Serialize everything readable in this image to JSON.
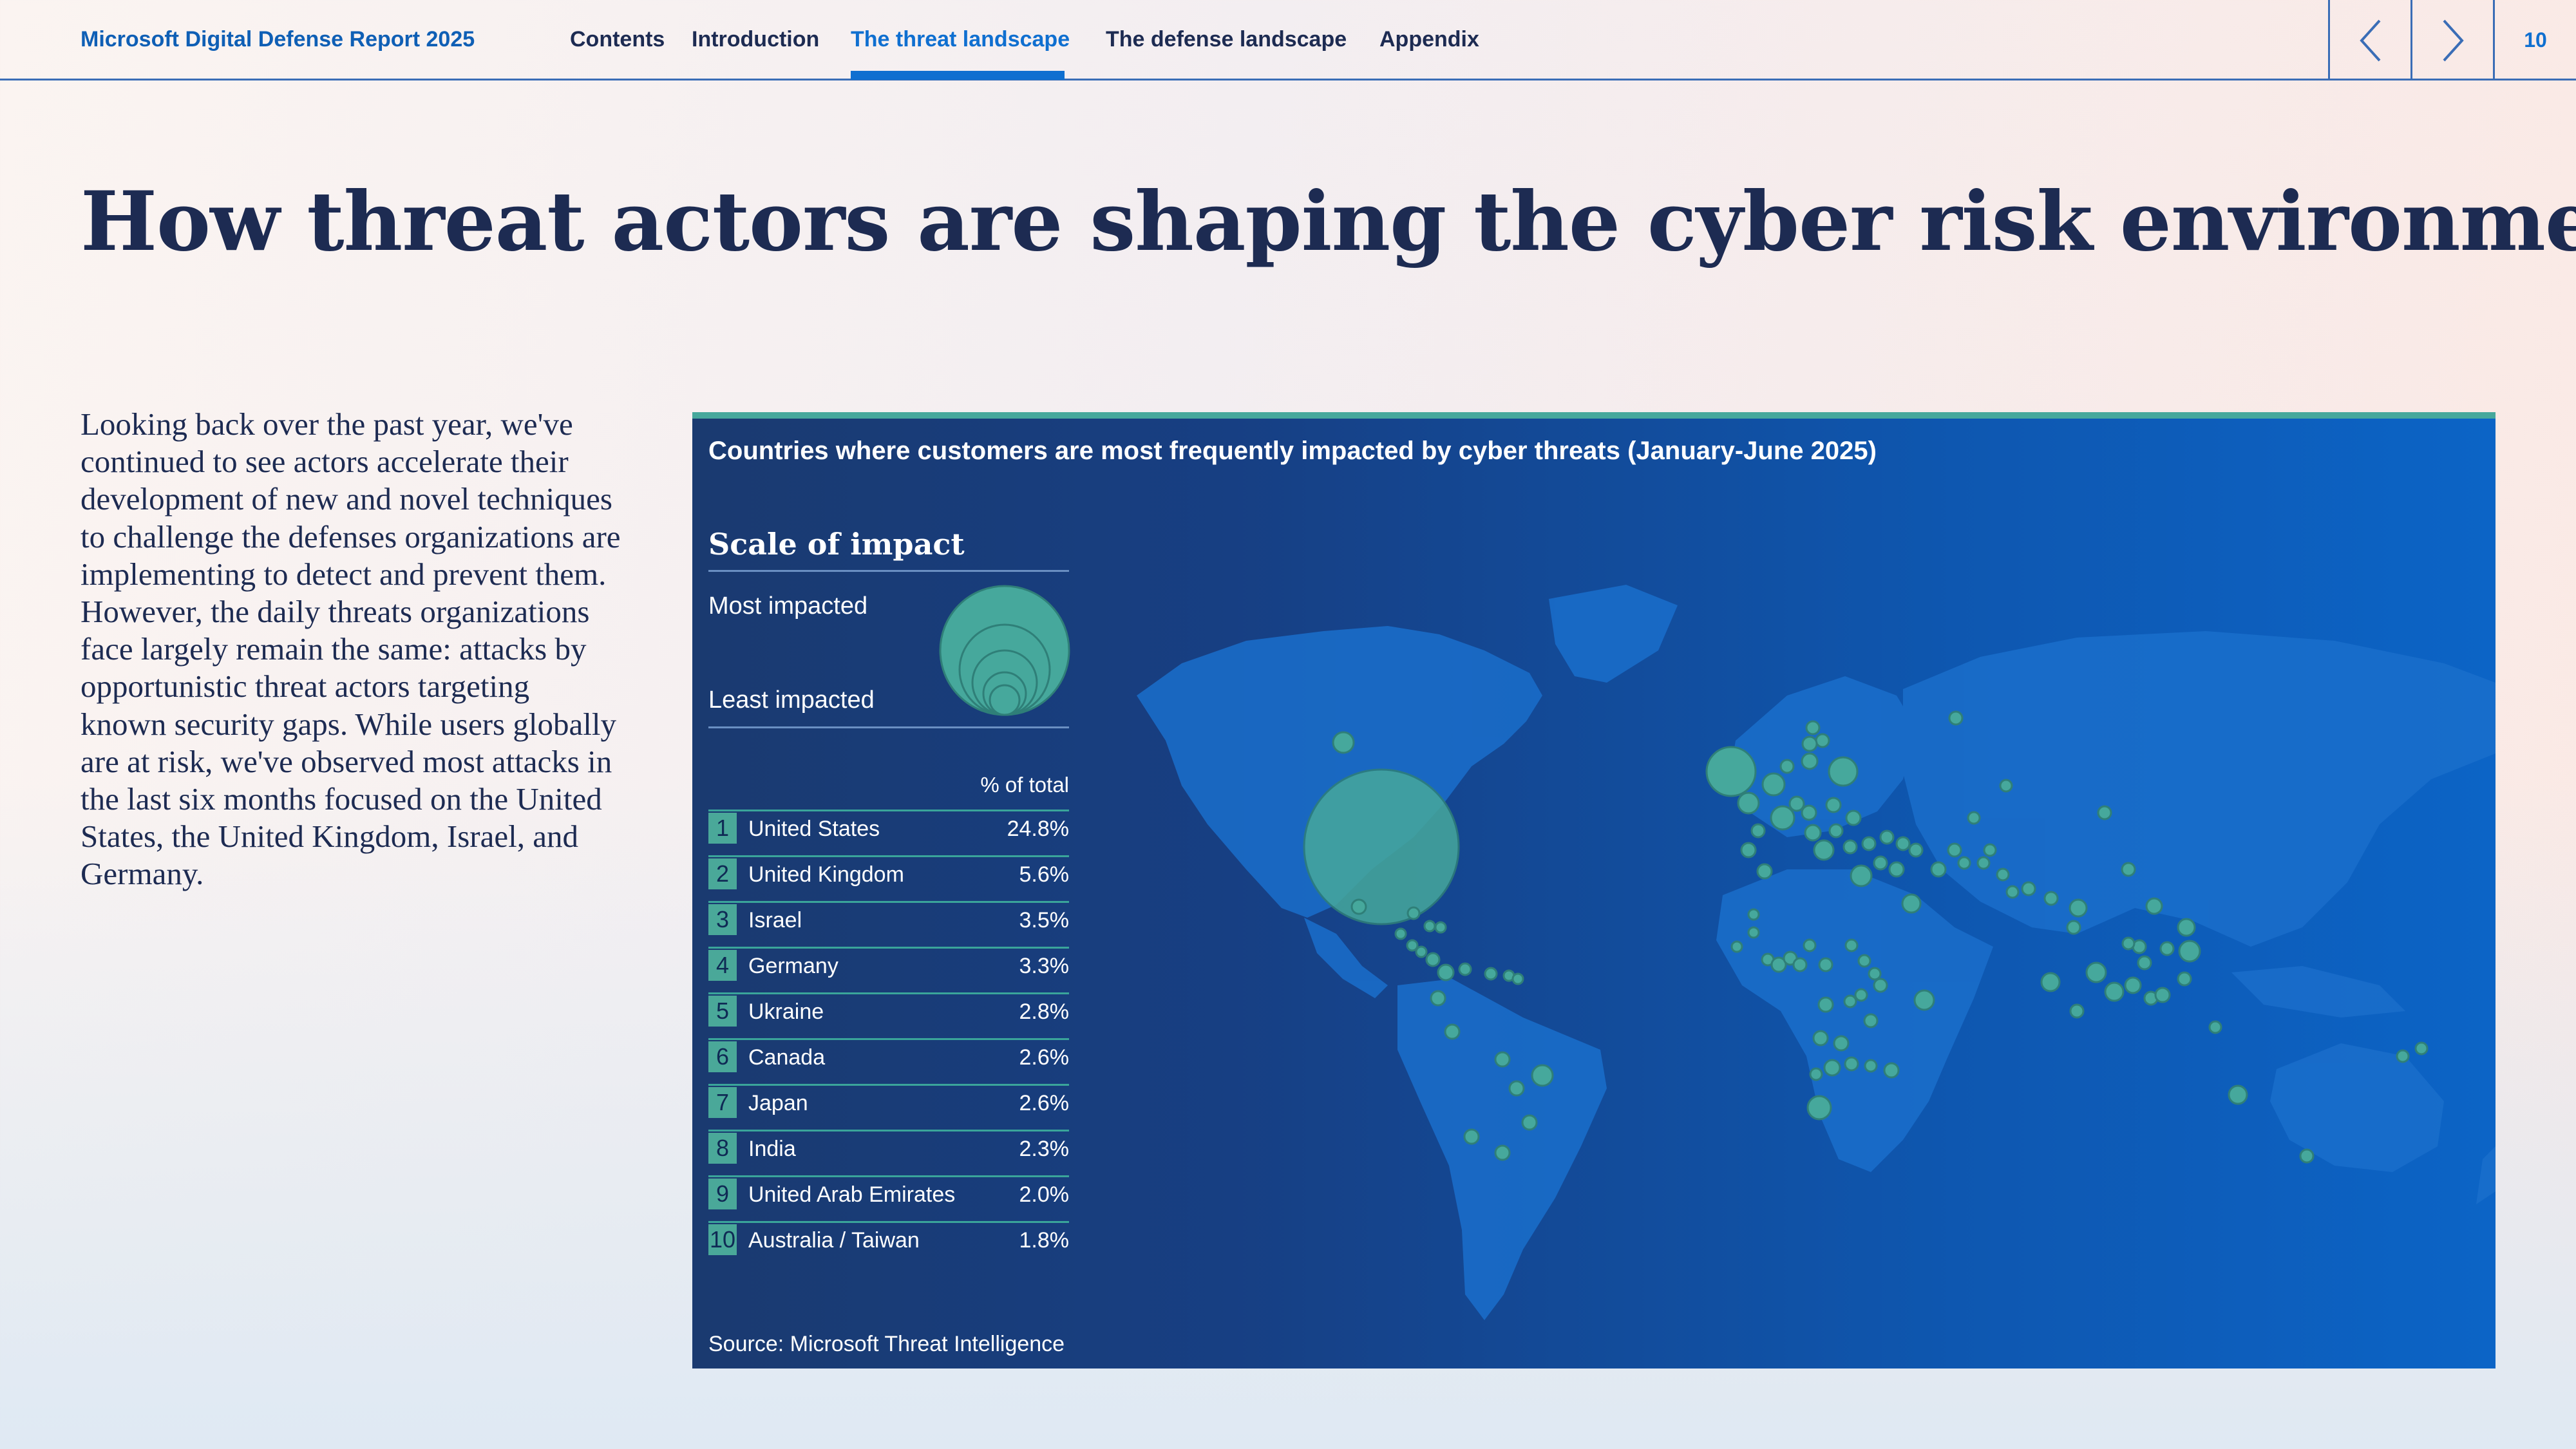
{
  "header": {
    "brand": "Microsoft Digital Defense Report 2025",
    "nav": [
      "Contents",
      "Introduction",
      "The threat landscape",
      "The defense landscape",
      "Appendix"
    ],
    "active_nav": "The threat landscape",
    "page_number": "10"
  },
  "headline": "How threat actors are shaping the cyber risk environment",
  "body_text": "Looking back over the past year, we've continued to see actors accelerate their development of new and novel techniques to challenge the defenses organizations are implementing to detect and prevent them. However, the daily threats organizations face largely remain the same: attacks by opportunistic threat actors targeting known security gaps. While users globally are at risk, we've observed most attacks in the last six months focused on the United States, the United Kingdom, Israel, and Germany.",
  "panel": {
    "title": "Countries where customers are most frequently impacted by cyber threats  (January-June 2025)",
    "scale_title": "Scale of impact",
    "most_impacted": "Most impacted",
    "least_impacted": "Least impacted",
    "table_header": "% of total",
    "source": "Source: Microsoft Threat Intelligence"
  },
  "colors": {
    "accent_teal": "#46a89c",
    "brand_blue": "#0f6fd0",
    "navy": "#1d2b52"
  },
  "chart_data": {
    "type": "table",
    "columns": [
      "",
      "",
      "% of total"
    ],
    "rows": [
      {
        "rank": "1",
        "country": "United States",
        "pct": "24.8%"
      },
      {
        "rank": "2",
        "country": "United Kingdom",
        "pct": "5.6%"
      },
      {
        "rank": "3",
        "country": "Israel",
        "pct": "3.5%"
      },
      {
        "rank": "4",
        "country": "Germany",
        "pct": "3.3%"
      },
      {
        "rank": "5",
        "country": "Ukraine",
        "pct": "2.8%"
      },
      {
        "rank": "6",
        "country": "Canada",
        "pct": "2.6%"
      },
      {
        "rank": "7",
        "country": "Japan",
        "pct": "2.6%"
      },
      {
        "rank": "8",
        "country": "India",
        "pct": "2.3%"
      },
      {
        "rank": "9",
        "country": "United Arab Emirates",
        "pct": "2.0%"
      },
      {
        "rank": "10",
        "country": "Australia / Taiwan",
        "pct": "1.8%"
      }
    ]
  }
}
